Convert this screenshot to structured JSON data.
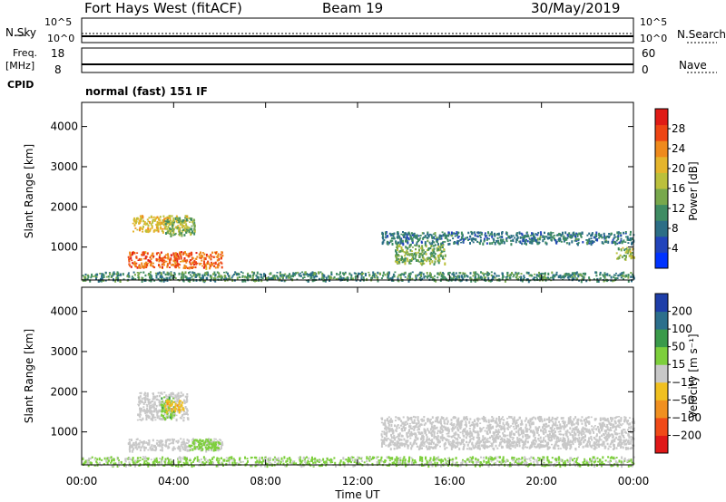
{
  "header": {
    "title": "Fort Hays West (fitACF)",
    "beam": "Beam 19",
    "date": "30/May/2019"
  },
  "summary_panels": {
    "nsky_label": "N.Sky",
    "nsearch_label": "N.Search",
    "noise_ticks": [
      "10^5",
      "10^0"
    ],
    "freq_label": "Freq.",
    "freq_unit": "[MHz]",
    "freq_ticks": [
      "18",
      "8"
    ],
    "nave_label": "Nave",
    "nave_ticks": [
      "60",
      "0"
    ],
    "cpid_label": "CPID",
    "cpid_text": "normal (fast) 151 IF"
  },
  "chart_data": [
    {
      "type": "heatmap",
      "panel": "power",
      "ylabel": "Slant Range [km]",
      "y_ticks": [
        "1000",
        "2000",
        "3000",
        "4000"
      ],
      "ylim": [
        180,
        4600
      ],
      "xlim": [
        0,
        24
      ],
      "colorbar_label": "Power [dB]",
      "colorbar_ticks": [
        "4",
        "8",
        "12",
        "16",
        "20",
        "24",
        "28"
      ],
      "colorbar_range": [
        0,
        32
      ],
      "colorbar_colors": [
        "#0033ff",
        "#2244bb",
        "#2c6e86",
        "#3f8c63",
        "#78a84c",
        "#bbc03c",
        "#e5b52c",
        "#ef8a1c",
        "#ee4514",
        "#e01b16"
      ],
      "echo_regions": [
        {
          "t_start": 2.2,
          "t_end": 4.6,
          "range_km": [
            1400,
            1800
          ],
          "value": 20
        },
        {
          "t_start": 3.6,
          "t_end": 4.9,
          "range_km": [
            1300,
            1750
          ],
          "value": 14
        },
        {
          "t_start": 2.0,
          "t_end": 6.1,
          "range_km": [
            500,
            900
          ],
          "value": 26
        },
        {
          "t_start": 13.6,
          "t_end": 15.8,
          "range_km": [
            600,
            1100
          ],
          "value": 14
        },
        {
          "t_start": 13.0,
          "t_end": 24.0,
          "range_km": [
            1100,
            1400
          ],
          "value": 9
        },
        {
          "t_start": 23.2,
          "t_end": 24.0,
          "range_km": [
            700,
            1000
          ],
          "value": 16
        },
        {
          "t_start": 0.0,
          "t_end": 24.0,
          "range_km": [
            180,
            400
          ],
          "value": 11
        }
      ]
    },
    {
      "type": "heatmap",
      "panel": "velocity",
      "ylabel": "Slant Range [km]",
      "y_ticks": [
        "1000",
        "2000",
        "3000",
        "4000"
      ],
      "ylim": [
        180,
        4600
      ],
      "xlim": [
        0,
        24
      ],
      "xlabel": "Time UT",
      "x_ticks": [
        "00:00",
        "04:00",
        "08:00",
        "12:00",
        "16:00",
        "20:00",
        "00:00"
      ],
      "colorbar_label": "Velocity [m s⁻¹]",
      "colorbar_ticks": [
        "200",
        "100",
        "50",
        "15",
        "-15",
        "-50",
        "-100",
        "-200"
      ],
      "colorbar_colors": [
        "#1e3ea8",
        "#2c6f8c",
        "#3a9a4a",
        "#7dcf3c",
        "#c8c8c8",
        "#f0c020",
        "#f09020",
        "#f04a18",
        "#e01818"
      ],
      "echo_regions": [
        {
          "t_start": 2.4,
          "t_end": 4.6,
          "range_km": [
            1300,
            2000
          ],
          "value": 0
        },
        {
          "t_start": 3.4,
          "t_end": 4.0,
          "range_km": [
            1350,
            1900
          ],
          "value": 40
        },
        {
          "t_start": 3.6,
          "t_end": 4.4,
          "range_km": [
            1500,
            1800
          ],
          "value": -40
        },
        {
          "t_start": 2.0,
          "t_end": 6.1,
          "range_km": [
            550,
            850
          ],
          "value": 0
        },
        {
          "t_start": 4.6,
          "t_end": 6.0,
          "range_km": [
            550,
            850
          ],
          "value": 30
        },
        {
          "t_start": 13.0,
          "t_end": 24.0,
          "range_km": [
            600,
            1400
          ],
          "value": 0
        },
        {
          "t_start": 0.0,
          "t_end": 24.0,
          "range_km": [
            180,
            400
          ],
          "value": 20
        }
      ]
    }
  ]
}
